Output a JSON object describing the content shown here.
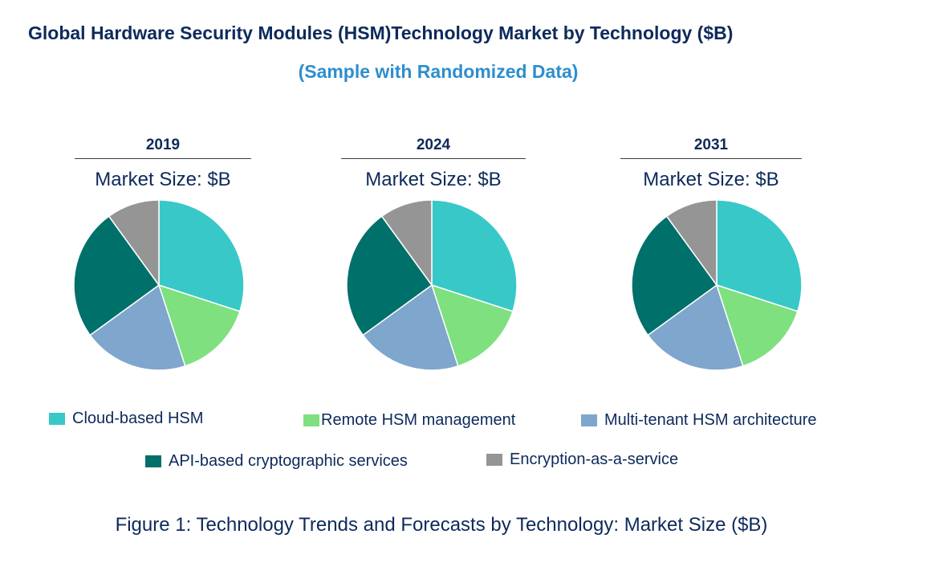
{
  "title": "Global Hardware Security Modules (HSM)Technology Market by  Technology ($B)",
  "subtitle": "(Sample with Randomized Data)",
  "caption": "Figure 1: Technology Trends and Forecasts by Technology: Market Size ($B)",
  "colors": {
    "Cloud-based HSM": "#38c8c8",
    "Remote HSM management": "#7ee07e",
    "Multi-tenant HSM architecture": "#7fa6cc",
    "API-based cryptographic services": "#00706a",
    "Encryption-as-a-service": "#959595"
  },
  "chart_data": [
    {
      "type": "pie",
      "title": "2019",
      "subtitle": "Market Size: $B",
      "categories": [
        "Cloud-based HSM",
        "Remote HSM management",
        "Multi-tenant HSM architecture",
        "API-based cryptographic services",
        "Encryption-as-a-service"
      ],
      "values": [
        30,
        15,
        20,
        25,
        10
      ],
      "value_unit": "percent share (estimated, unlabeled)"
    },
    {
      "type": "pie",
      "title": "2024",
      "subtitle": "Market Size: $B",
      "categories": [
        "Cloud-based HSM",
        "Remote HSM management",
        "Multi-tenant HSM architecture",
        "API-based cryptographic services",
        "Encryption-as-a-service"
      ],
      "values": [
        30,
        15,
        20,
        25,
        10
      ],
      "value_unit": "percent share (estimated, unlabeled)"
    },
    {
      "type": "pie",
      "title": "2031",
      "subtitle": "Market Size: $B",
      "categories": [
        "Cloud-based HSM",
        "Remote HSM management",
        "Multi-tenant HSM architecture",
        "API-based cryptographic services",
        "Encryption-as-a-service"
      ],
      "values": [
        30,
        15,
        20,
        25,
        10
      ],
      "value_unit": "percent share (estimated, unlabeled)"
    }
  ],
  "legend": [
    "Cloud-based HSM",
    "Remote HSM management",
    "Multi-tenant HSM architecture",
    "API-based cryptographic services",
    "Encryption-as-a-service"
  ]
}
